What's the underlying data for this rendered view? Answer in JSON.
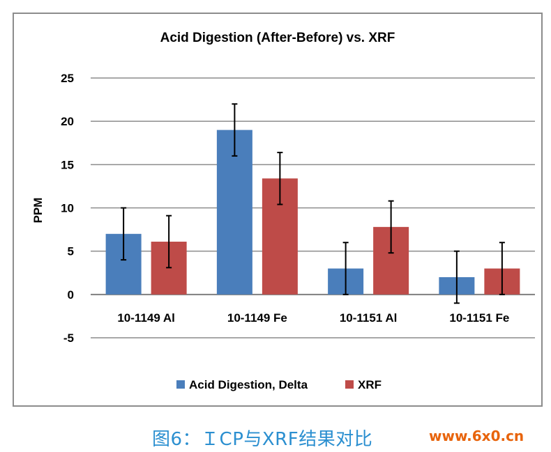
{
  "chart_data": {
    "type": "bar",
    "title": "Acid Digestion (After-Before) vs. XRF",
    "xlabel": "",
    "ylabel": "PPM",
    "ylim": [
      -5,
      25
    ],
    "yticks": [
      -5,
      0,
      5,
      10,
      15,
      20,
      25
    ],
    "grid": true,
    "legend_position": "bottom",
    "categories": [
      "10-1149 Al",
      "10-1149 Fe",
      "10-1151 Al",
      "10-1151 Fe"
    ],
    "series": [
      {
        "name": "Acid Digestion, Delta",
        "color": "#4a7ebb",
        "values": [
          7,
          19,
          3,
          2
        ],
        "error": [
          3,
          3,
          3,
          3
        ]
      },
      {
        "name": "XRF",
        "color": "#be4b48",
        "values": [
          6.1,
          13.4,
          7.8,
          3
        ],
        "error": [
          3,
          3,
          3,
          3
        ]
      }
    ]
  },
  "caption": {
    "text": "图6：ＩCP与XRF结果对比",
    "color": "#2b8fd0"
  },
  "watermark": {
    "text": "www.6x0.cn",
    "color": "#e8640c"
  }
}
